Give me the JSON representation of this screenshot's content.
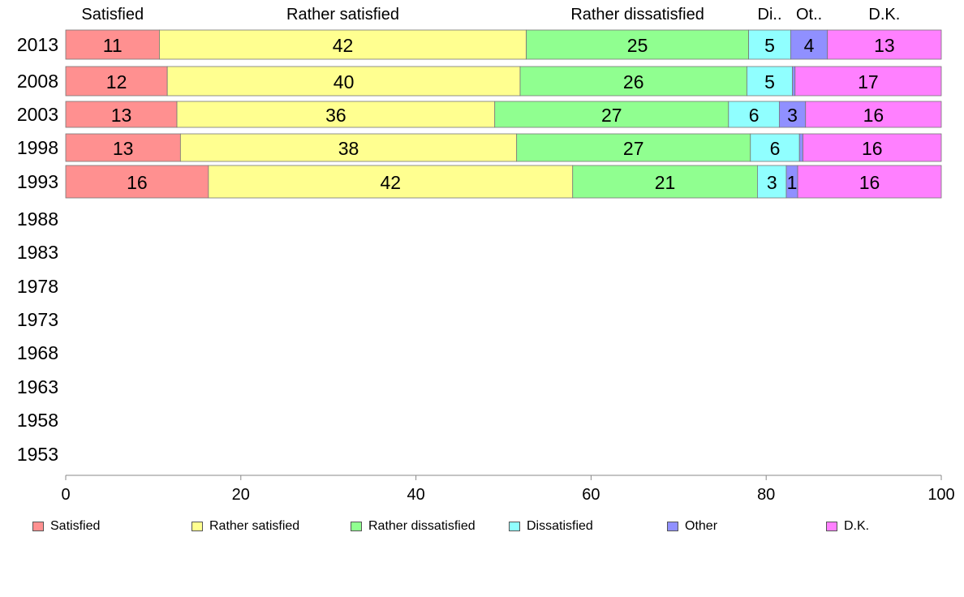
{
  "chart_data": {
    "type": "bar",
    "orientation": "horizontal",
    "stacked": true,
    "categories": [
      "2013",
      "2008",
      "2003",
      "1998",
      "1993",
      "1988",
      "1983",
      "1978",
      "1973",
      "1968",
      "1963",
      "1958",
      "1953"
    ],
    "xlim": [
      0,
      100
    ],
    "xticks": [
      "0",
      "20",
      "40",
      "60",
      "80",
      "100"
    ],
    "top_labels": [
      "Satisfied",
      "Rather satisfied",
      "Rather dissatisfied",
      "Di..",
      "Ot..",
      "D.K."
    ],
    "series": [
      {
        "name": "Satisfied",
        "color": "#ff9090",
        "values": [
          10.7,
          11.6,
          12.7,
          13.1,
          16.3,
          null,
          null,
          null,
          null,
          null,
          null,
          null,
          null
        ],
        "labels": [
          "11",
          "12",
          "13",
          "13",
          "16",
          "",
          "",
          "",
          "",
          "",
          "",
          "",
          ""
        ]
      },
      {
        "name": "Rather satisfied",
        "color": "#ffff90",
        "values": [
          41.9,
          40.3,
          36.3,
          38.4,
          41.6,
          null,
          null,
          null,
          null,
          null,
          null,
          null,
          null
        ],
        "labels": [
          "42",
          "40",
          "36",
          "38",
          "42",
          "",
          "",
          "",
          "",
          "",
          "",
          "",
          ""
        ]
      },
      {
        "name": "Rather dissatisfied",
        "color": "#90ff90",
        "values": [
          25.4,
          25.9,
          26.7,
          26.7,
          21.1,
          null,
          null,
          null,
          null,
          null,
          null,
          null,
          null
        ],
        "labels": [
          "25",
          "26",
          "27",
          "27",
          "21",
          "",
          "",
          "",
          "",
          "",
          "",
          "",
          ""
        ]
      },
      {
        "name": "Dissatisfied",
        "color": "#90ffff",
        "values": [
          4.8,
          5.2,
          5.8,
          5.6,
          3.3,
          null,
          null,
          null,
          null,
          null,
          null,
          null,
          null
        ],
        "labels": [
          "5",
          "5",
          "6",
          "6",
          "3",
          "",
          "",
          "",
          "",
          "",
          "",
          "",
          ""
        ]
      },
      {
        "name": "Other",
        "color": "#9090ff",
        "values": [
          4.2,
          0.3,
          3.0,
          0.4,
          1.3,
          null,
          null,
          null,
          null,
          null,
          null,
          null,
          null
        ],
        "labels": [
          "4",
          "",
          "3",
          "",
          "1",
          "",
          "",
          "",
          "",
          "",
          "",
          "",
          ""
        ]
      },
      {
        "name": "D.K.",
        "color": "#ff80ff",
        "values": [
          13.0,
          16.7,
          15.5,
          15.8,
          16.4,
          null,
          null,
          null,
          null,
          null,
          null,
          null,
          null
        ],
        "labels": [
          "13",
          "17",
          "16",
          "16",
          "16",
          "",
          "",
          "",
          "",
          "",
          "",
          "",
          ""
        ]
      }
    ]
  },
  "legend": [
    {
      "label": "Satisfied",
      "color": "#ff9090"
    },
    {
      "label": "Rather satisfied",
      "color": "#ffff90"
    },
    {
      "label": "Rather dissatisfied",
      "color": "#90ff90"
    },
    {
      "label": "Dissatisfied",
      "color": "#90ffff"
    },
    {
      "label": "Other",
      "color": "#9090ff"
    },
    {
      "label": "D.K.",
      "color": "#ff80ff"
    }
  ]
}
